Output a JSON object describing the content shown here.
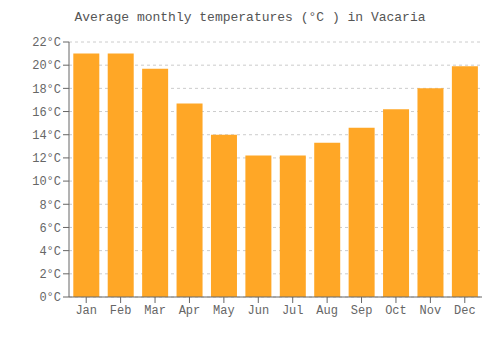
{
  "chart_data": {
    "type": "bar",
    "title": "Average monthly temperatures (°C ) in Vacaria",
    "categories": [
      "Jan",
      "Feb",
      "Mar",
      "Apr",
      "May",
      "Jun",
      "Jul",
      "Aug",
      "Sep",
      "Oct",
      "Nov",
      "Dec"
    ],
    "values": [
      21.0,
      21.0,
      19.7,
      16.7,
      14.0,
      12.2,
      12.2,
      13.3,
      14.6,
      16.2,
      18.0,
      19.9
    ],
    "color": "#FFA726",
    "ylim": [
      0,
      22
    ],
    "yticks": [
      {
        "value": 0,
        "label": "0°C"
      },
      {
        "value": 2,
        "label": "2°C"
      },
      {
        "value": 4,
        "label": "4°C"
      },
      {
        "value": 6,
        "label": "6°C"
      },
      {
        "value": 8,
        "label": "8°C"
      },
      {
        "value": 10,
        "label": "10°C"
      },
      {
        "value": 12,
        "label": "12°C"
      },
      {
        "value": 14,
        "label": "14°C"
      },
      {
        "value": 16,
        "label": "16°C"
      },
      {
        "value": 18,
        "label": "18°C"
      },
      {
        "value": 20,
        "label": "20°C"
      },
      {
        "value": 22,
        "label": "22°C"
      }
    ],
    "grid": true
  }
}
